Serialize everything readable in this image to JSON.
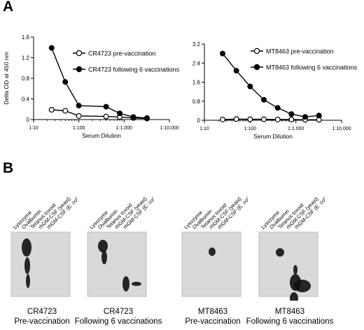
{
  "panels": {
    "a": "A",
    "b": "B"
  },
  "chart_data": [
    {
      "type": "line",
      "ylabel": "Delta OD at 450 nm",
      "xlabel": "Serum Dilution",
      "x_scale": "log",
      "xlim": [
        10,
        10000
      ],
      "ylim": [
        0,
        1.6
      ],
      "y_ticks": [
        "0",
        "0.4",
        "0.8",
        "1.2",
        "1.6"
      ],
      "x_ticks": [
        "1:10",
        "1:100",
        "1:1,000",
        "1:10,000"
      ],
      "legend_position": "top-right",
      "series": [
        {
          "name": "CR4723 pre-vaccination",
          "marker": "open-circle",
          "x": [
            25,
            50,
            100,
            400,
            800,
            1600,
            3200
          ],
          "y": [
            0.19,
            0.17,
            0.07,
            0.06,
            0.05,
            0.03,
            0.02
          ]
        },
        {
          "name": "CR4723 following 6 vaccinations",
          "marker": "filled-circle",
          "x": [
            25,
            50,
            100,
            400,
            800,
            1600,
            3200
          ],
          "y": [
            1.39,
            0.73,
            0.27,
            0.25,
            0.12,
            0.05,
            0.03
          ]
        }
      ]
    },
    {
      "type": "line",
      "ylabel": "",
      "xlabel": "Serum Dilution",
      "x_scale": "log",
      "xlim": [
        10,
        10000
      ],
      "ylim": [
        0,
        3.2
      ],
      "y_ticks": [
        "0",
        "0.8",
        "1.6",
        "2.4",
        "3.2"
      ],
      "x_ticks": [
        "1:10",
        "1:100",
        "1:1,000",
        "1:10,000"
      ],
      "legend_position": "top-right",
      "series": [
        {
          "name": "MT8463 pre-vaccination",
          "marker": "open-circle",
          "x": [
            25,
            50,
            100,
            200,
            400,
            800,
            1600,
            3200
          ],
          "y": [
            0.03,
            0.05,
            0.04,
            0.04,
            0.03,
            0.03,
            0.02,
            0.02
          ]
        },
        {
          "name": "MT8463 following 6 vaccinations",
          "marker": "filled-circle",
          "x": [
            25,
            50,
            100,
            200,
            400,
            800,
            1600,
            3200
          ],
          "y": [
            2.8,
            2.08,
            1.42,
            0.86,
            0.52,
            0.26,
            0.14,
            0.2
          ]
        }
      ]
    }
  ],
  "blots": {
    "lanes": [
      "Lysozyme",
      "Ovalbumin",
      "Tetanus toxoid",
      "rhGM-CSF (yeast)",
      "rhGM-CSF (E. coli)"
    ],
    "items": [
      {
        "patient": "CR4723",
        "condition": "Pre-vaccination"
      },
      {
        "patient": "CR4723",
        "condition": "Following 6 vaccinations"
      },
      {
        "patient": "MT8463",
        "condition": "Pre-vaccination"
      },
      {
        "patient": "MT8463",
        "condition": "Following 6 vaccinations"
      }
    ]
  },
  "colors": {
    "ink": "#000000",
    "film": "#d9d9d9",
    "film_edge": "#bdbdbd"
  }
}
